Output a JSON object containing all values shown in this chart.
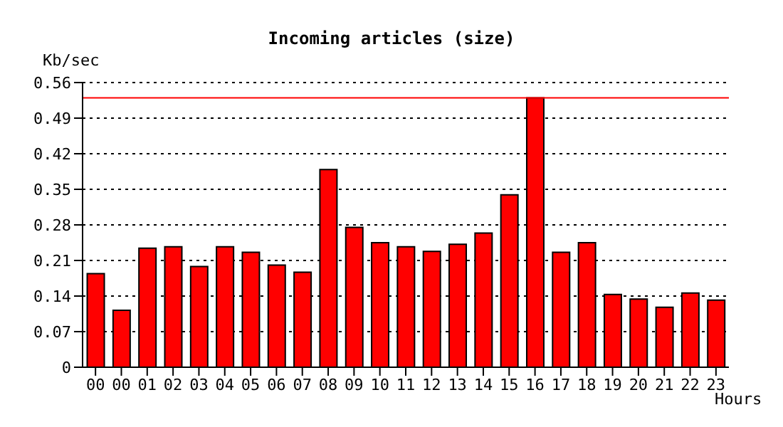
{
  "chart_data": {
    "type": "bar",
    "title": "Incoming articles (size)",
    "xlabel": "Hours",
    "ylabel": "Kb/sec",
    "categories": [
      "00",
      "00",
      "01",
      "02",
      "03",
      "04",
      "05",
      "06",
      "07",
      "08",
      "09",
      "10",
      "11",
      "12",
      "13",
      "14",
      "15",
      "16",
      "17",
      "18",
      "19",
      "20",
      "21",
      "22",
      "23"
    ],
    "values": [
      0.184,
      0.112,
      0.234,
      0.237,
      0.198,
      0.237,
      0.226,
      0.201,
      0.187,
      0.389,
      0.275,
      0.245,
      0.237,
      0.228,
      0.242,
      0.264,
      0.339,
      0.53,
      0.226,
      0.245,
      0.143,
      0.134,
      0.118,
      0.146,
      0.132
    ],
    "color": "#ff0000",
    "ylim": [
      0,
      0.56
    ],
    "yticks": [
      0,
      0.07,
      0.14,
      0.21,
      0.28,
      0.35,
      0.42,
      0.49,
      0.56
    ],
    "grid": "y",
    "legend": false,
    "ref_lines": [
      {
        "axis": "y",
        "value": 0.53,
        "color": "#ff0000"
      }
    ]
  }
}
